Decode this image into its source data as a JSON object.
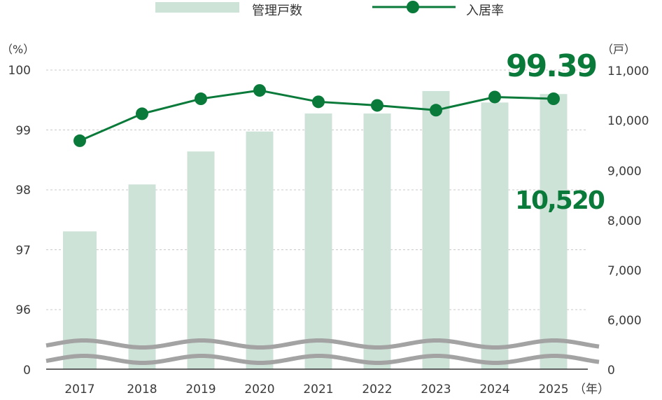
{
  "legend": [
    {
      "label": "管理戸数",
      "type": "bar",
      "color": "#cde3d8"
    },
    {
      "label": "入居率",
      "type": "line",
      "color": "#0a7a3a"
    }
  ],
  "axes": {
    "left_unit": "（%）",
    "right_unit": "（戸）",
    "x_unit": "（年）",
    "left_ticks": [
      "100",
      "99",
      "98",
      "97",
      "96",
      "0"
    ],
    "right_ticks": [
      "11,000",
      "10,000",
      "9,000",
      "8,000",
      "7,000",
      "6,000",
      "0"
    ]
  },
  "callouts": {
    "occupancy": "99.39",
    "units": "10,520"
  },
  "colors": {
    "bar": "#cde3d8",
    "line": "#0a7a3a",
    "grid": "#c8c8c8",
    "wave": "#a3a3a3",
    "baseline": "#333333"
  },
  "chart_data": {
    "type": "bar+line",
    "title": "",
    "categories": [
      "2017",
      "2018",
      "2019",
      "2020",
      "2021",
      "2022",
      "2023",
      "2024",
      "2025"
    ],
    "series": [
      {
        "name": "管理戸数",
        "type": "bar",
        "axis": "right",
        "values": [
          7770,
          8710,
          9370,
          9770,
          10130,
          10130,
          10580,
          10350,
          10520
        ]
      },
      {
        "name": "入居率",
        "type": "line",
        "axis": "left",
        "values": [
          98.82,
          99.27,
          99.52,
          99.66,
          99.47,
          99.41,
          99.33,
          99.55,
          99.39
        ]
      }
    ],
    "xlabel": "（年）",
    "ylabel_left": "（%）",
    "ylabel_right": "（戸）",
    "ylim_left": [
      96,
      100
    ],
    "ylim_right": [
      6000,
      11000
    ],
    "axis_break": true,
    "grid": "horizontal dashed",
    "legend_position": "top",
    "annotations": [
      "99.39",
      "10,520"
    ]
  }
}
